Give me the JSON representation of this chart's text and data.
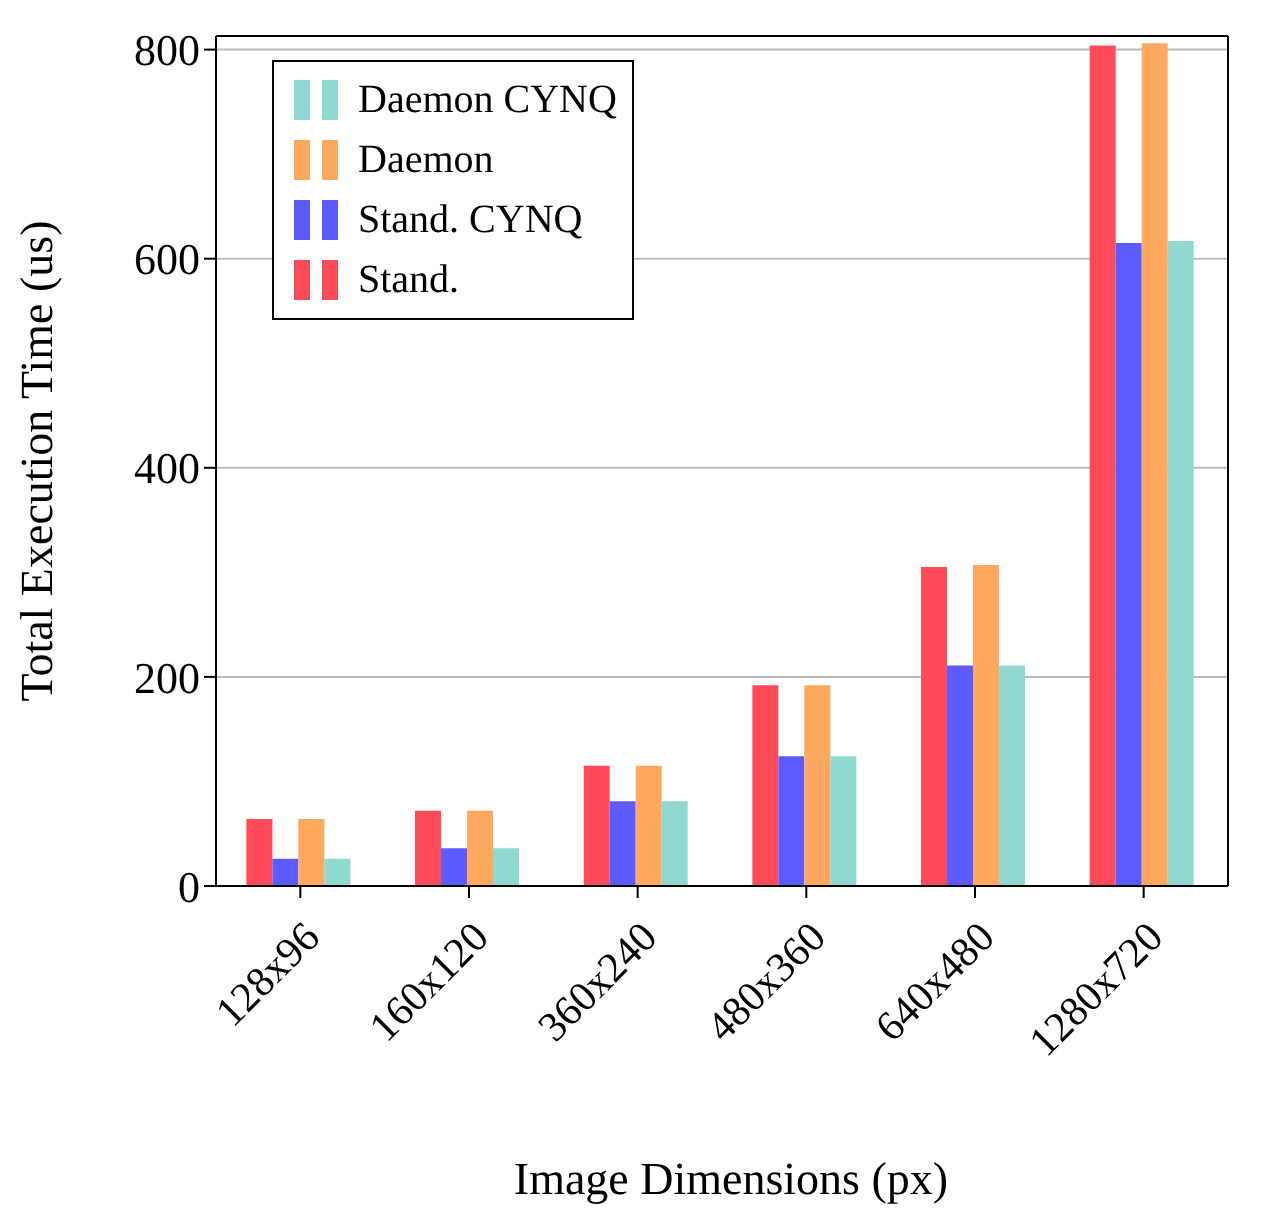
{
  "chart_data": {
    "type": "bar",
    "xlabel": "Image Dimensions (px)",
    "ylabel": "Total Execution Time (us)",
    "categories": [
      "128x96",
      "160x120",
      "360x240",
      "480x360",
      "640x480",
      "1280x720"
    ],
    "series": [
      {
        "name": "Stand.",
        "color": "#ff4a5a",
        "values": [
          64,
          72,
          115,
          192,
          305,
          804
        ]
      },
      {
        "name": "Stand. CYNQ",
        "color": "#5b5bff",
        "values": [
          26,
          36,
          81,
          124,
          211,
          615
        ]
      },
      {
        "name": "Daemon",
        "color": "#ffa860",
        "values": [
          64,
          72,
          115,
          192,
          307,
          806
        ]
      },
      {
        "name": "Daemon CYNQ",
        "color": "#8fd9d0",
        "values": [
          26,
          36,
          81,
          124,
          211,
          617
        ]
      }
    ],
    "ylim": [
      0,
      813
    ],
    "yticks": [
      0,
      200,
      400,
      600,
      800
    ],
    "grid": "y",
    "legend": "top left"
  }
}
